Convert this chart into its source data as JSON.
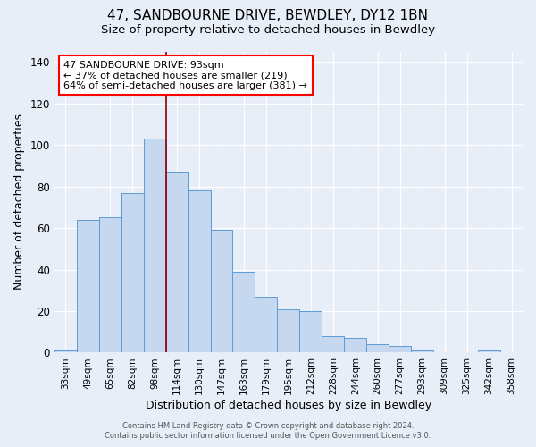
{
  "title1": "47, SANDBOURNE DRIVE, BEWDLEY, DY12 1BN",
  "title2": "Size of property relative to detached houses in Bewdley",
  "xlabel": "Distribution of detached houses by size in Bewdley",
  "ylabel": "Number of detached properties",
  "footer1": "Contains HM Land Registry data © Crown copyright and database right 2024.",
  "footer2": "Contains public sector information licensed under the Open Government Licence v3.0.",
  "categories": [
    "33sqm",
    "49sqm",
    "65sqm",
    "82sqm",
    "98sqm",
    "114sqm",
    "130sqm",
    "147sqm",
    "163sqm",
    "179sqm",
    "195sqm",
    "212sqm",
    "228sqm",
    "244sqm",
    "260sqm",
    "277sqm",
    "293sqm",
    "309sqm",
    "325sqm",
    "342sqm",
    "358sqm"
  ],
  "values": [
    1,
    64,
    65,
    77,
    103,
    87,
    78,
    59,
    39,
    27,
    21,
    20,
    8,
    7,
    4,
    3,
    1,
    0,
    0,
    1,
    0
  ],
  "bar_color": "#c5d8f0",
  "bar_edge_color": "#5b9bd5",
  "red_line_index": 4,
  "annotation_line1": "47 SANDBOURNE DRIVE: 93sqm",
  "annotation_line2": "← 37% of detached houses are smaller (219)",
  "annotation_line3": "64% of semi-detached houses are larger (381) →",
  "annotation_box_color": "white",
  "annotation_box_edge": "red",
  "ylim": [
    0,
    145
  ],
  "yticks": [
    0,
    20,
    40,
    60,
    80,
    100,
    120,
    140
  ],
  "bg_color": "#e8eef8",
  "grid_color": "#ffffff",
  "title1_fontsize": 11,
  "title2_fontsize": 9.5,
  "xlabel_fontsize": 9,
  "ylabel_fontsize": 9,
  "tick_fontsize": 8.5,
  "xtick_fontsize": 7.5,
  "footer_fontsize": 6,
  "annot_fontsize": 8
}
